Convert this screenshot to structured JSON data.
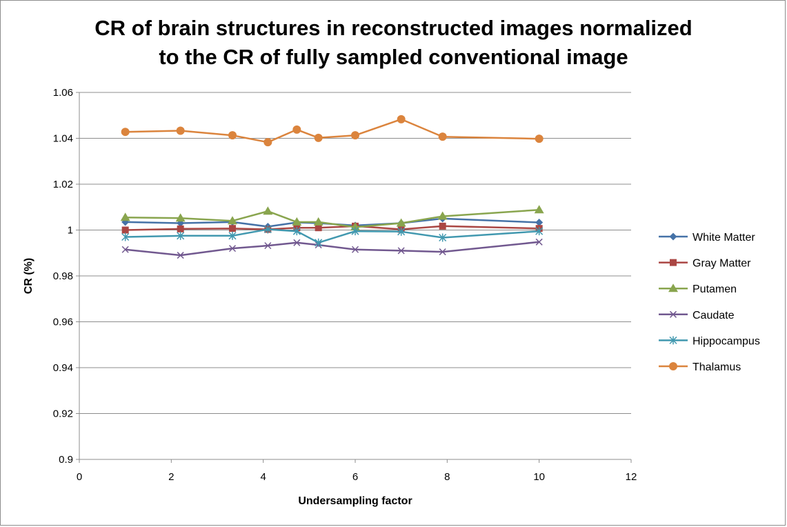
{
  "chart_data": {
    "type": "scatter",
    "title_line1": "CR of brain structures in reconstructed images normalized",
    "title_line2": "to the CR of fully sampled conventional image",
    "xlabel": "Undersampling factor",
    "ylabel": "CR (%)",
    "xlim": [
      0,
      12
    ],
    "ylim": [
      0.9,
      1.06
    ],
    "xticks": [
      "0",
      "2",
      "4",
      "6",
      "8",
      "10",
      "12"
    ],
    "yticks": [
      "0.9",
      "0.92",
      "0.94",
      "0.96",
      "0.98",
      "1",
      "1.02",
      "1.04",
      "1.06"
    ],
    "grid": "horizontal",
    "legend_position": "right",
    "series": [
      {
        "name": "White Matter",
        "color": "#4572A7",
        "marker": "diamond",
        "x": [
          1,
          2.2,
          3.33,
          4.1,
          4.73,
          5.2,
          6,
          7,
          7.9,
          10
        ],
        "y": [
          1.0035,
          1.003,
          1.0035,
          1.0015,
          1.0033,
          1.003,
          1.002,
          1.003,
          1.005,
          1.0033
        ]
      },
      {
        "name": "Gray Matter",
        "color": "#AA4643",
        "marker": "square",
        "x": [
          1,
          2.2,
          3.33,
          4.1,
          4.73,
          5.2,
          6,
          7,
          7.9,
          10
        ],
        "y": [
          1.0,
          1.0005,
          1.0007,
          1.0003,
          1.001,
          1.001,
          1.0017,
          1.0003,
          1.0017,
          1.0007
        ]
      },
      {
        "name": "Putamen",
        "color": "#89A54E",
        "marker": "triangle",
        "x": [
          1,
          2.2,
          3.33,
          4.1,
          4.73,
          5.2,
          6,
          7,
          7.9,
          10
        ],
        "y": [
          1.0055,
          1.0052,
          1.004,
          1.0082,
          1.0035,
          1.0035,
          1.0013,
          1.003,
          1.006,
          1.0088
        ]
      },
      {
        "name": "Caudate",
        "color": "#71588F",
        "marker": "x",
        "x": [
          1,
          2.2,
          3.33,
          4.1,
          4.73,
          5.2,
          6,
          7,
          7.9,
          10
        ],
        "y": [
          0.9915,
          0.989,
          0.992,
          0.9932,
          0.9945,
          0.9935,
          0.9915,
          0.991,
          0.9905,
          0.9948
        ]
      },
      {
        "name": "Hippocampus",
        "color": "#4198AF",
        "marker": "asterisk",
        "x": [
          1,
          2.2,
          3.33,
          4.1,
          4.73,
          5.2,
          6,
          7,
          7.9,
          10
        ],
        "y": [
          0.997,
          0.9975,
          0.9975,
          1.0003,
          0.9995,
          0.9945,
          0.9995,
          0.9993,
          0.9967,
          0.9995
        ]
      },
      {
        "name": "Thalamus",
        "color": "#DB843D",
        "marker": "circle",
        "x": [
          1,
          2.2,
          3.33,
          4.1,
          4.73,
          5.2,
          6,
          7,
          7.9,
          10
        ],
        "y": [
          1.0428,
          1.0433,
          1.0413,
          1.0383,
          1.0438,
          1.0402,
          1.0413,
          1.0483,
          1.0407,
          1.0398
        ]
      }
    ]
  }
}
